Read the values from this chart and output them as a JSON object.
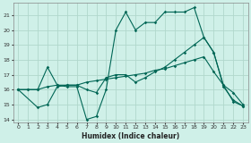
{
  "title": "",
  "xlabel": "Humidex (Indice chaleur)",
  "bg_color": "#cff0e8",
  "grid_color": "#b0d8cc",
  "line_color": "#006655",
  "xlim": [
    -0.5,
    23.5
  ],
  "ylim": [
    13.8,
    21.8
  ],
  "yticks": [
    14,
    15,
    16,
    17,
    18,
    19,
    20,
    21
  ],
  "xticks": [
    0,
    1,
    2,
    3,
    4,
    5,
    6,
    7,
    8,
    9,
    10,
    11,
    12,
    13,
    14,
    15,
    16,
    17,
    18,
    19,
    20,
    21,
    22,
    23
  ],
  "line1_x": [
    0,
    1,
    2,
    3,
    4,
    5,
    6,
    7,
    8,
    9,
    10,
    11,
    12,
    13,
    14,
    15,
    16,
    17,
    18,
    19,
    20,
    21,
    22,
    23
  ],
  "line1_y": [
    16.0,
    16.0,
    16.0,
    17.5,
    16.3,
    16.2,
    16.2,
    14.0,
    14.2,
    16.0,
    20.0,
    21.2,
    20.0,
    20.5,
    20.5,
    21.2,
    21.2,
    21.2,
    21.5,
    19.5,
    18.5,
    16.3,
    15.2,
    14.9
  ],
  "line2_x": [
    0,
    2,
    3,
    4,
    5,
    6,
    7,
    8,
    9,
    10,
    11,
    12,
    13,
    14,
    15,
    16,
    17,
    18,
    19,
    20,
    21,
    22,
    23
  ],
  "line2_y": [
    16.0,
    14.8,
    15.0,
    16.2,
    16.3,
    16.3,
    16.0,
    15.8,
    16.8,
    17.0,
    17.0,
    16.5,
    16.8,
    17.2,
    17.5,
    18.0,
    18.5,
    19.0,
    19.5,
    18.5,
    16.2,
    15.3,
    14.9
  ],
  "line3_x": [
    0,
    1,
    2,
    3,
    4,
    5,
    6,
    7,
    8,
    9,
    10,
    11,
    12,
    13,
    14,
    15,
    16,
    17,
    18,
    19,
    20,
    21,
    22,
    23
  ],
  "line3_y": [
    16.0,
    16.0,
    16.0,
    16.2,
    16.3,
    16.3,
    16.3,
    16.5,
    16.6,
    16.7,
    16.8,
    16.9,
    17.0,
    17.1,
    17.3,
    17.4,
    17.6,
    17.8,
    18.0,
    18.2,
    17.2,
    16.3,
    15.8,
    15.0
  ]
}
